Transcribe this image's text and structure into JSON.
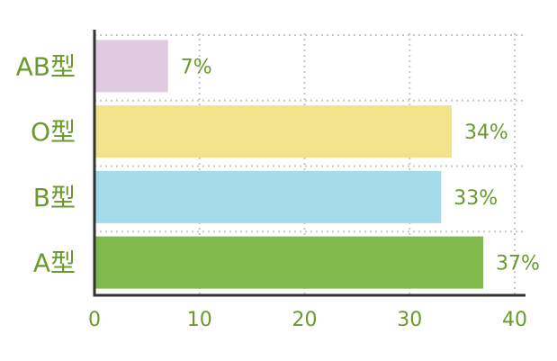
{
  "chart_data": {
    "type": "bar",
    "orientation": "horizontal",
    "categories": [
      "AB型",
      "O型",
      "B型",
      "A型"
    ],
    "values": [
      7,
      34,
      33,
      37
    ],
    "value_labels": [
      "7%",
      "34%",
      "33%",
      "37%"
    ],
    "colors": [
      "#dfcadf",
      "#f2e28a",
      "#a3dbea",
      "#80b94b"
    ],
    "xlim": [
      0,
      40
    ],
    "xticks": [
      0,
      10,
      20,
      30,
      40
    ],
    "grid": true
  }
}
